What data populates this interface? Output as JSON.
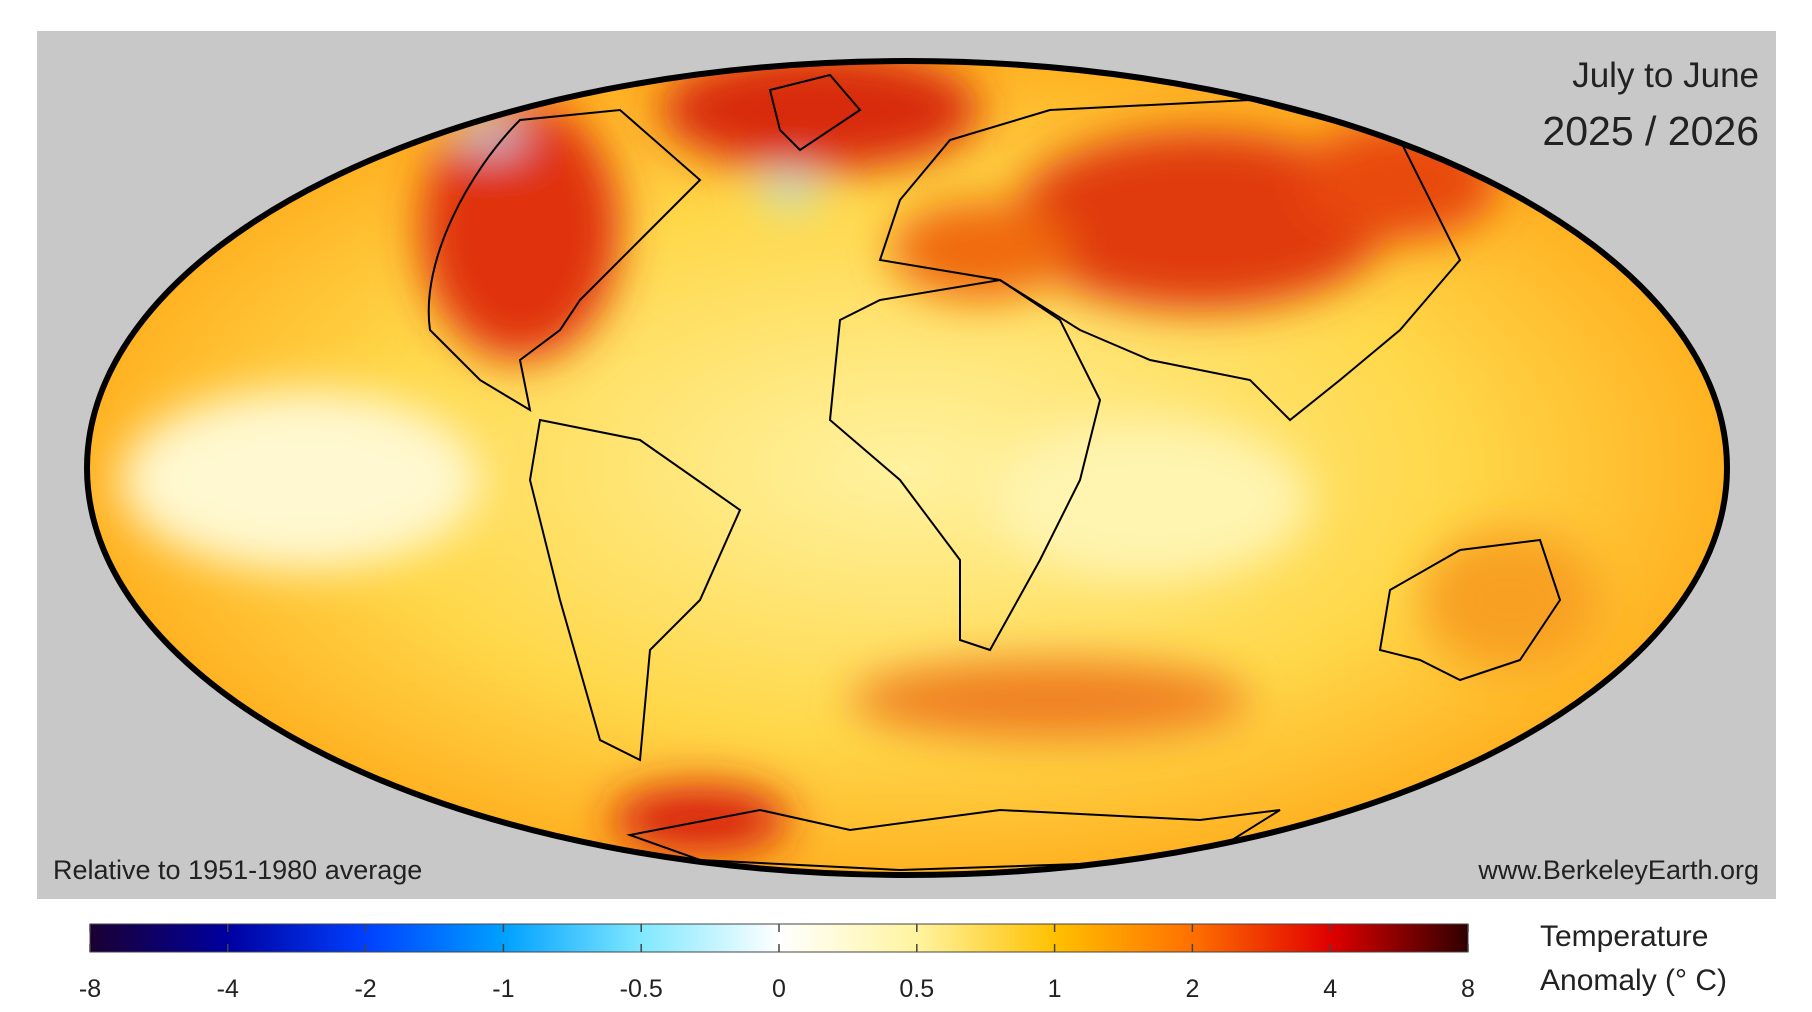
{
  "header": {
    "period": "July to June",
    "years": "2025 / 2026"
  },
  "footer": {
    "baseline": "Relative to 1951-1980 average",
    "source": "www.BerkeleyEarth.org"
  },
  "colorbar": {
    "title": [
      "Temperature",
      "Anomaly (° C)"
    ],
    "ticks": [
      -8,
      -4,
      -2,
      -1,
      -0.5,
      0,
      0.5,
      1,
      2,
      4,
      8
    ],
    "colors": [
      "#1a0033",
      "#0000a0",
      "#0040ff",
      "#00a0ff",
      "#80e8ff",
      "#ffffff",
      "#fff4a0",
      "#ffc000",
      "#ff7000",
      "#e00000",
      "#300000"
    ]
  }
}
